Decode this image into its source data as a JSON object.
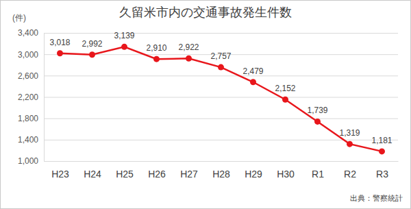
{
  "chart_data": {
    "type": "line",
    "title": "久留米市内の交通事故発生件数",
    "ylabel": "(件)",
    "source": "出典：警察統計",
    "categories": [
      "H23",
      "H24",
      "H25",
      "H26",
      "H27",
      "H28",
      "H29",
      "H30",
      "R1",
      "R2",
      "R3"
    ],
    "values": [
      3018,
      2992,
      3139,
      2910,
      2922,
      2757,
      2479,
      2152,
      1739,
      1319,
      1181
    ],
    "value_labels": [
      "3,018",
      "2,992",
      "3,139",
      "2,910",
      "2,922",
      "2,757",
      "2,479",
      "2,152",
      "1,739",
      "1,319",
      "1,181"
    ],
    "color": "#e8161b",
    "marker": "circle",
    "data_labels": true,
    "grid": true,
    "ylim": [
      1000,
      3400
    ],
    "yticks": [
      {
        "value": 1000,
        "label": "1,000"
      },
      {
        "value": 1400,
        "label": "1,400"
      },
      {
        "value": 1800,
        "label": "1,800"
      },
      {
        "value": 2200,
        "label": "2,200"
      },
      {
        "value": 2600,
        "label": "2,600"
      },
      {
        "value": 3000,
        "label": "3,000"
      },
      {
        "value": 3400,
        "label": "3,400"
      }
    ]
  }
}
